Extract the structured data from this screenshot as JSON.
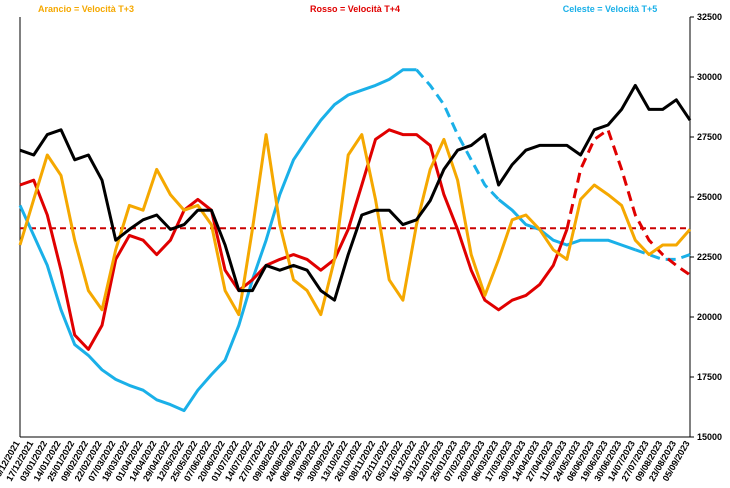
{
  "chart_data": {
    "type": "line",
    "categories": [
      "06/12/2021",
      "17/12/2021",
      "03/01/2022",
      "14/01/2022",
      "25/01/2022",
      "09/02/2022",
      "22/02/2022",
      "07/03/2022",
      "18/03/2022",
      "01/04/2022",
      "14/04/2022",
      "29/04/2022",
      "12/05/2022",
      "25/05/2022",
      "07/06/2022",
      "20/06/2022",
      "01/07/2022",
      "14/07/2022",
      "27/07/2022",
      "09/08/2022",
      "24/08/2022",
      "06/09/2022",
      "19/09/2022",
      "30/09/2022",
      "13/10/2022",
      "26/10/2022",
      "08/11/2022",
      "22/11/2022",
      "05/12/2022",
      "16/12/2022",
      "30/12/2022",
      "12/01/2023",
      "25/01/2023",
      "07/02/2023",
      "20/02/2023",
      "06/03/2023",
      "17/03/2023",
      "30/03/2023",
      "14/04/2023",
      "27/04/2023",
      "11/05/2023",
      "24/05/2023",
      "06/06/2023",
      "19/06/2023",
      "30/06/2023",
      "14/07/2023",
      "27/07/2023",
      "09/08/2023",
      "23/08/2023",
      "05/09/2023"
    ],
    "series": [
      {
        "name": "Celeste = Velocità T+5",
        "color": "#1ab0e8",
        "dashed": false,
        "values": [
          24650,
          23400,
          22150,
          20300,
          18850,
          18400,
          17800,
          17400,
          17150,
          16950,
          16550,
          16350,
          16100,
          16950,
          17600,
          18200,
          19650,
          21550,
          23200,
          25100,
          26550,
          27400,
          28200,
          28850,
          29250,
          29450,
          29650,
          29900,
          30300,
          30300,
          null,
          null,
          null,
          null,
          null,
          24900,
          24450,
          23850,
          23650,
          23200,
          23000,
          23200,
          23200,
          23200,
          23000,
          22800,
          null,
          null,
          null,
          null
        ]
      },
      {
        "color": "#1ab0e8",
        "dashed": true,
        "values": [
          null,
          null,
          null,
          null,
          null,
          null,
          null,
          null,
          null,
          null,
          null,
          null,
          null,
          null,
          null,
          null,
          null,
          null,
          null,
          null,
          null,
          null,
          null,
          null,
          null,
          null,
          null,
          null,
          null,
          30300,
          29650,
          28850,
          27600,
          26550,
          25500,
          24900,
          null,
          null,
          null,
          null,
          null,
          null,
          null,
          null,
          null,
          22800,
          22600,
          22400,
          22400,
          22600
        ]
      },
      {
        "name": "Rosso = Velocità T+4",
        "color": "#e00000",
        "dashed": false,
        "values": [
          25500,
          25700,
          24250,
          21950,
          19250,
          18650,
          19650,
          22400,
          23400,
          23200,
          22600,
          23200,
          24450,
          24900,
          24450,
          21950,
          21100,
          21550,
          22150,
          22400,
          22600,
          22400,
          21950,
          22400,
          23650,
          25500,
          27400,
          27800,
          27600,
          27600,
          27150,
          25100,
          23650,
          21950,
          20700,
          20300,
          20700,
          20900,
          21350,
          22150,
          23650,
          null,
          null,
          null,
          null,
          null,
          null,
          null,
          null,
          null
        ]
      },
      {
        "color": "#e00000",
        "dashed": true,
        "values": [
          null,
          null,
          null,
          null,
          null,
          null,
          null,
          null,
          null,
          null,
          null,
          null,
          null,
          null,
          null,
          null,
          null,
          null,
          null,
          null,
          null,
          null,
          null,
          null,
          null,
          null,
          null,
          null,
          null,
          null,
          null,
          null,
          null,
          null,
          null,
          null,
          null,
          null,
          null,
          null,
          23650,
          26150,
          27400,
          27800,
          26150,
          24250,
          23200,
          22600,
          22150,
          21750
        ]
      },
      {
        "name": "Arancio = Velocità T+3",
        "color": "#f5a800",
        "dashed": false,
        "values": [
          23000,
          24900,
          26750,
          25900,
          23200,
          21100,
          20300,
          22800,
          24650,
          24450,
          26150,
          25100,
          24450,
          24650,
          23850,
          21100,
          20100,
          23650,
          27600,
          23850,
          21550,
          21100,
          20100,
          22400,
          26750,
          27600,
          24900,
          21550,
          20700,
          23850,
          26150,
          27400,
          25700,
          22600,
          20900,
          22400,
          24050,
          24250,
          23650,
          22800,
          22400,
          24900,
          25500,
          25100,
          24650,
          23200,
          22600,
          23000,
          23000,
          23650
        ]
      },
      {
        "color": "#000000",
        "dashed": false,
        "values": [
          26950,
          26750,
          27600,
          27800,
          26550,
          26750,
          25700,
          23200,
          23650,
          24050,
          24250,
          23650,
          23850,
          24450,
          24450,
          23000,
          21100,
          21100,
          22150,
          21950,
          22150,
          21950,
          21100,
          20700,
          22600,
          24250,
          24450,
          24450,
          23850,
          24050,
          24850,
          26150,
          26950,
          27150,
          27600,
          25500,
          26350,
          26950,
          27150,
          27150,
          27150,
          26750,
          27800,
          28000,
          28650,
          29650,
          28650,
          28650,
          29050,
          28200
        ]
      }
    ],
    "reference_line": {
      "value": 23700,
      "color": "#cc0000",
      "dashed": true
    },
    "ylim": [
      15000,
      32500
    ],
    "yticks": [
      15000,
      17500,
      20000,
      22500,
      25000,
      27500,
      30000,
      32500
    ],
    "grid": false
  }
}
